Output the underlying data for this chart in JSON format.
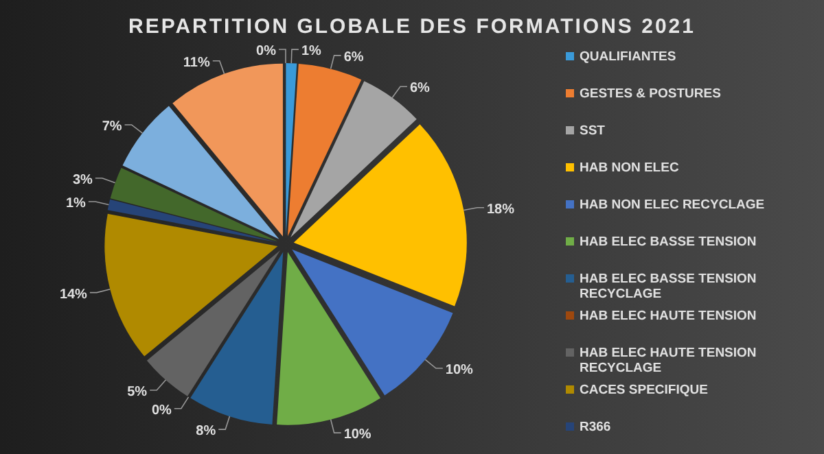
{
  "chart_data": {
    "type": "pie",
    "title": "REPARTITION GLOBALE DES FORMATIONS 2021",
    "categories": [
      "QUALIFIANTES",
      "GESTES & POSTURES",
      "SST",
      "HAB NON ELEC",
      "HAB NON ELEC RECYCLAGE",
      "HAB ELEC BASSE TENSION",
      "HAB ELEC BASSE TENSION RECYCLAGE",
      "HAB ELEC HAUTE TENSION",
      "HAB ELEC HAUTE TENSION RECYCLAGE",
      "CACES SPECIFIQUE",
      "R366",
      null,
      null,
      null,
      null
    ],
    "values": [
      1,
      6,
      6,
      18,
      10,
      10,
      8,
      0,
      5,
      14,
      1,
      3,
      7,
      11,
      0
    ],
    "value_labels": [
      "1%",
      "6%",
      "6%",
      "18%",
      "10%",
      "10%",
      "8%",
      "0%",
      "5%",
      "14%",
      "1%",
      "3%",
      "7%",
      "11%",
      "0%"
    ],
    "colors": [
      "#3a9ad9",
      "#ed7d31",
      "#a5a5a5",
      "#ffc000",
      "#4472c4",
      "#70ad47",
      "#255e91",
      "#9e480e",
      "#636363",
      "#b08a00",
      "#264478",
      "#43682b",
      "#7cafdd",
      "#f1975a",
      "#b7b7b7"
    ],
    "legend": "right"
  }
}
